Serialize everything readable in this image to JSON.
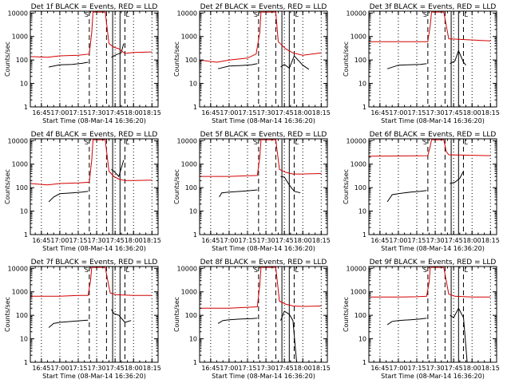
{
  "figure": {
    "xtick_labels": [
      "16:45",
      "17:00",
      "17:15",
      "17:30",
      "17:45",
      "18:00",
      "18:15"
    ],
    "ytick_labels": [
      "1",
      "10",
      "100",
      "1000",
      "10000"
    ],
    "ylabel": "Counts/sec",
    "xlabel": "Start Time (08-Mar-14 16:36:20)",
    "colors": {
      "events": "#000000",
      "lld": "#d40000",
      "axes": "#000000"
    },
    "marker_letters": [
      "S",
      "L"
    ]
  },
  "chart_data": [
    {
      "type": "line",
      "title": "Det 1f BLACK = Events, RED = LLD",
      "x_unit": "clock time (HH:MM)",
      "ylim": [
        1,
        12000
      ],
      "yscale": "log",
      "xlim": [
        "16:36",
        "18:20"
      ],
      "series": [
        {
          "name": "Events",
          "color": "#000000",
          "points": [
            [
              "16:51",
              50
            ],
            [
              "17:00",
              62
            ],
            [
              "17:10",
              65
            ],
            [
              "17:18",
              72
            ],
            [
              "17:23",
              80
            ]
          ]
        },
        {
          "name": "Events",
          "color": "#000000",
          "points": [
            [
              "17:42",
              130
            ],
            [
              "17:46",
              170
            ],
            [
              "17:50",
              200
            ],
            [
              "17:52",
              500
            ]
          ]
        },
        {
          "name": "LLD",
          "color": "#d40000",
          "points": [
            [
              "16:36",
              140
            ],
            [
              "16:50",
              130
            ],
            [
              "17:00",
              150
            ],
            [
              "17:15",
              160
            ],
            [
              "17:24",
              180
            ],
            [
              "17:26",
              1500
            ],
            [
              "17:27",
              11000
            ],
            [
              "17:37",
              11000
            ],
            [
              "17:40",
              500
            ],
            [
              "17:44",
              350
            ],
            [
              "17:48",
              300
            ],
            [
              "17:53",
              190
            ],
            [
              "18:00",
              210
            ],
            [
              "18:15",
              220
            ]
          ]
        }
      ]
    },
    {
      "type": "line",
      "title": "Det 2f BLACK = Events, RED = LLD",
      "x_unit": "clock time (HH:MM)",
      "ylim": [
        1,
        12000
      ],
      "yscale": "log",
      "xlim": [
        "16:36",
        "18:20"
      ],
      "series": [
        {
          "name": "Events",
          "color": "#000000",
          "points": [
            [
              "16:51",
              42
            ],
            [
              "17:00",
              55
            ],
            [
              "17:10",
              58
            ],
            [
              "17:18",
              62
            ],
            [
              "17:23",
              70
            ]
          ]
        },
        {
          "name": "Events",
          "color": "#000000",
          "points": [
            [
              "17:42",
              50
            ],
            [
              "17:45",
              65
            ],
            [
              "17:49",
              45
            ],
            [
              "17:53",
              150
            ],
            [
              "18:00",
              60
            ],
            [
              "18:05",
              40
            ]
          ]
        },
        {
          "name": "LLD",
          "color": "#d40000",
          "points": [
            [
              "16:36",
              100
            ],
            [
              "16:50",
              80
            ],
            [
              "17:00",
              100
            ],
            [
              "17:15",
              120
            ],
            [
              "17:22",
              180
            ],
            [
              "17:25",
              1500
            ],
            [
              "17:26",
              11000
            ],
            [
              "17:38",
              11000
            ],
            [
              "17:40",
              600
            ],
            [
              "17:46",
              300
            ],
            [
              "17:52",
              200
            ],
            [
              "18:00",
              160
            ],
            [
              "18:15",
              200
            ]
          ]
        }
      ]
    },
    {
      "type": "line",
      "title": "Det 3f BLACK = Events, RED = LLD",
      "x_unit": "clock time (HH:MM)",
      "ylim": [
        1,
        12000
      ],
      "yscale": "log",
      "xlim": [
        "16:36",
        "18:20"
      ],
      "series": [
        {
          "name": "Events",
          "color": "#000000",
          "points": [
            [
              "16:51",
              42
            ],
            [
              "17:00",
              60
            ],
            [
              "17:10",
              63
            ],
            [
              "17:18",
              65
            ],
            [
              "17:23",
              70
            ]
          ]
        },
        {
          "name": "Events",
          "color": "#000000",
          "points": [
            [
              "17:42",
              70
            ],
            [
              "17:46",
              90
            ],
            [
              "17:49",
              250
            ],
            [
              "17:53",
              80
            ],
            [
              "17:55",
              60
            ]
          ]
        },
        {
          "name": "LLD",
          "color": "#d40000",
          "points": [
            [
              "16:36",
              600
            ],
            [
              "17:24",
              600
            ],
            [
              "17:26",
              3000
            ],
            [
              "17:27",
              11000
            ],
            [
              "17:37",
              11000
            ],
            [
              "17:41",
              800
            ],
            [
              "18:15",
              650
            ]
          ]
        }
      ]
    },
    {
      "type": "line",
      "title": "Det 4f BLACK = Events, RED = LLD",
      "x_unit": "clock time (HH:MM)",
      "ylim": [
        1,
        12000
      ],
      "yscale": "log",
      "xlim": [
        "16:36",
        "18:20"
      ],
      "series": [
        {
          "name": "Events",
          "color": "#000000",
          "points": [
            [
              "16:51",
              25
            ],
            [
              "16:55",
              40
            ],
            [
              "17:00",
              55
            ],
            [
              "17:10",
              60
            ],
            [
              "17:18",
              65
            ],
            [
              "17:23",
              70
            ]
          ]
        },
        {
          "name": "Events",
          "color": "#000000",
          "points": [
            [
              "17:42",
              600
            ],
            [
              "17:44",
              500
            ],
            [
              "17:48",
              300
            ],
            [
              "17:52",
              1500
            ]
          ]
        },
        {
          "name": "LLD",
          "color": "#d40000",
          "points": [
            [
              "16:36",
              150
            ],
            [
              "16:50",
              130
            ],
            [
              "17:00",
              150
            ],
            [
              "17:15",
              160
            ],
            [
              "17:24",
              170
            ],
            [
              "17:26",
              1500
            ],
            [
              "17:27",
              11000
            ],
            [
              "17:37",
              11000
            ],
            [
              "17:40",
              500
            ],
            [
              "17:44",
              300
            ],
            [
              "17:48",
              230
            ],
            [
              "17:53",
              200
            ],
            [
              "18:00",
              200
            ],
            [
              "18:15",
              210
            ]
          ]
        }
      ]
    },
    {
      "type": "line",
      "title": "Det 5f BLACK = Events, RED = LLD",
      "x_unit": "clock time (HH:MM)",
      "ylim": [
        1,
        12000
      ],
      "yscale": "log",
      "xlim": [
        "16:36",
        "18:20"
      ],
      "series": [
        {
          "name": "Events",
          "color": "#000000",
          "points": [
            [
              "16:52",
              40
            ],
            [
              "16:54",
              60
            ],
            [
              "17:00",
              65
            ],
            [
              "17:10",
              70
            ],
            [
              "17:18",
              75
            ],
            [
              "17:23",
              80
            ]
          ]
        },
        {
          "name": "Events",
          "color": "#000000",
          "points": [
            [
              "17:42",
              300
            ],
            [
              "17:45",
              280
            ],
            [
              "17:49",
              130
            ],
            [
              "17:53",
              70
            ],
            [
              "17:58",
              60
            ]
          ]
        },
        {
          "name": "LLD",
          "color": "#d40000",
          "points": [
            [
              "16:36",
              300
            ],
            [
              "17:00",
              300
            ],
            [
              "17:15",
              320
            ],
            [
              "17:23",
              330
            ],
            [
              "17:25",
              2000
            ],
            [
              "17:26",
              11000
            ],
            [
              "17:38",
              11000
            ],
            [
              "17:41",
              600
            ],
            [
              "17:46",
              450
            ],
            [
              "17:52",
              380
            ],
            [
              "18:00",
              380
            ],
            [
              "18:15",
              400
            ]
          ]
        }
      ]
    },
    {
      "type": "line",
      "title": "Det 6f BLACK = Events, RED = LLD",
      "x_unit": "clock time (HH:MM)",
      "ylim": [
        1,
        12000
      ],
      "yscale": "log",
      "xlim": [
        "16:36",
        "18:20"
      ],
      "series": [
        {
          "name": "Events",
          "color": "#000000",
          "points": [
            [
              "16:51",
              25
            ],
            [
              "16:55",
              50
            ],
            [
              "17:00",
              55
            ],
            [
              "17:10",
              65
            ],
            [
              "17:18",
              70
            ],
            [
              "17:23",
              75
            ]
          ]
        },
        {
          "name": "Events",
          "color": "#000000",
          "points": [
            [
              "17:42",
              150
            ],
            [
              "17:46",
              170
            ],
            [
              "17:50",
              250
            ],
            [
              "17:53",
              500
            ]
          ]
        },
        {
          "name": "LLD",
          "color": "#d40000",
          "points": [
            [
              "16:36",
              2200
            ],
            [
              "17:24",
              2300
            ],
            [
              "17:26",
              6000
            ],
            [
              "17:27",
              11000
            ],
            [
              "17:37",
              11000
            ],
            [
              "17:39",
              3500
            ],
            [
              "17:41",
              2500
            ],
            [
              "18:15",
              2300
            ]
          ]
        }
      ]
    },
    {
      "type": "line",
      "title": "Det 7f BLACK = Events, RED = LLD",
      "x_unit": "clock time (HH:MM)",
      "ylim": [
        1,
        12000
      ],
      "yscale": "log",
      "xlim": [
        "16:36",
        "18:20"
      ],
      "series": [
        {
          "name": "Events",
          "color": "#000000",
          "points": [
            [
              "16:51",
              30
            ],
            [
              "16:55",
              45
            ],
            [
              "17:00",
              50
            ],
            [
              "17:10",
              55
            ],
            [
              "17:18",
              60
            ],
            [
              "17:23",
              62
            ]
          ]
        },
        {
          "name": "Events",
          "color": "#000000",
          "points": [
            [
              "17:42",
              180
            ],
            [
              "17:44",
              120
            ],
            [
              "17:48",
              100
            ],
            [
              "17:53",
              50
            ],
            [
              "17:58",
              60
            ]
          ]
        },
        {
          "name": "LLD",
          "color": "#d40000",
          "points": [
            [
              "16:36",
              650
            ],
            [
              "17:00",
              650
            ],
            [
              "17:15",
              700
            ],
            [
              "17:23",
              700
            ],
            [
              "17:25",
              3000
            ],
            [
              "17:26",
              11000
            ],
            [
              "17:37",
              11000
            ],
            [
              "17:41",
              900
            ],
            [
              "17:46",
              750
            ],
            [
              "18:00",
              700
            ],
            [
              "18:15",
              700
            ]
          ]
        }
      ]
    },
    {
      "type": "line",
      "title": "Det 8f BLACK = Events, RED = LLD",
      "x_unit": "clock time (HH:MM)",
      "ylim": [
        1,
        12000
      ],
      "yscale": "log",
      "xlim": [
        "16:36",
        "18:20"
      ],
      "series": [
        {
          "name": "Events",
          "color": "#000000",
          "points": [
            [
              "16:51",
              45
            ],
            [
              "16:55",
              60
            ],
            [
              "17:00",
              65
            ],
            [
              "17:10",
              70
            ],
            [
              "17:18",
              72
            ],
            [
              "17:23",
              75
            ]
          ]
        },
        {
          "name": "Events",
          "color": "#000000",
          "points": [
            [
              "17:42",
              60
            ],
            [
              "17:45",
              150
            ],
            [
              "17:49",
              110
            ],
            [
              "17:52",
              60
            ],
            [
              "17:55",
              1
            ]
          ]
        },
        {
          "name": "LLD",
          "color": "#d40000",
          "points": [
            [
              "16:36",
              200
            ],
            [
              "17:00",
              200
            ],
            [
              "17:15",
              220
            ],
            [
              "17:23",
              230
            ],
            [
              "17:25",
              2000
            ],
            [
              "17:26",
              11000
            ],
            [
              "17:38",
              11000
            ],
            [
              "17:41",
              400
            ],
            [
              "17:46",
              300
            ],
            [
              "17:52",
              250
            ],
            [
              "18:00",
              240
            ],
            [
              "18:15",
              250
            ]
          ]
        }
      ]
    },
    {
      "type": "line",
      "title": "Det 9f BLACK = Events, RED = LLD",
      "x_unit": "clock time (HH:MM)",
      "ylim": [
        1,
        12000
      ],
      "yscale": "log",
      "xlim": [
        "16:36",
        "18:20"
      ],
      "series": [
        {
          "name": "Events",
          "color": "#000000",
          "points": [
            [
              "16:51",
              40
            ],
            [
              "16:55",
              55
            ],
            [
              "17:00",
              60
            ],
            [
              "17:10",
              65
            ],
            [
              "17:18",
              70
            ],
            [
              "17:23",
              75
            ]
          ]
        },
        {
          "name": "Events",
          "color": "#000000",
          "points": [
            [
              "17:42",
              100
            ],
            [
              "17:45",
              80
            ],
            [
              "17:49",
              200
            ],
            [
              "17:53",
              80
            ],
            [
              "17:56",
              1
            ]
          ]
        },
        {
          "name": "LLD",
          "color": "#d40000",
          "points": [
            [
              "16:36",
              600
            ],
            [
              "17:00",
              600
            ],
            [
              "17:15",
              620
            ],
            [
              "17:23",
              650
            ],
            [
              "17:25",
              2500
            ],
            [
              "17:26",
              11000
            ],
            [
              "17:37",
              11000
            ],
            [
              "17:41",
              800
            ],
            [
              "17:46",
              650
            ],
            [
              "18:00",
              600
            ],
            [
              "18:15",
              600
            ]
          ]
        }
      ]
    }
  ]
}
